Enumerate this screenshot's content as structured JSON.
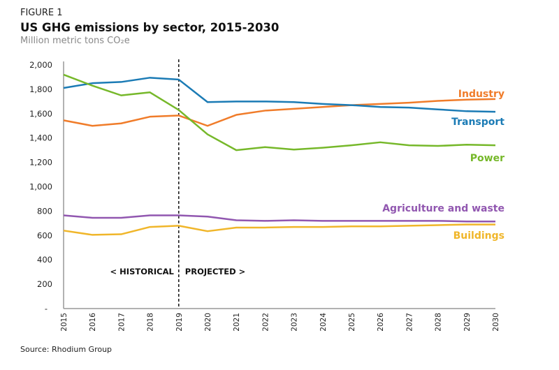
{
  "figure_label": "FIGURE 1",
  "source": "Source: Rhodium Group",
  "chart_data": {
    "type": "line",
    "title": "US GHG emissions by sector, 2015-2030",
    "subtitle": "Million metric tons CO₂e",
    "x": [
      2015,
      2016,
      2017,
      2018,
      2019,
      2020,
      2021,
      2022,
      2023,
      2024,
      2025,
      2026,
      2027,
      2028,
      2029,
      2030
    ],
    "ylim": [
      0,
      2000
    ],
    "yticks": [
      "-",
      "200",
      "400",
      "600",
      "800",
      "1,000",
      "1,200",
      "1,400",
      "1,600",
      "1,800",
      "2,000"
    ],
    "grid": false,
    "divider": {
      "x": 2019,
      "left_label": "< HISTORICAL",
      "right_label": "PROJECTED >"
    },
    "series": [
      {
        "name": "Industry",
        "color": "#f07c2a",
        "values": [
          1545,
          1500,
          1520,
          1575,
          1585,
          1500,
          1590,
          1625,
          1640,
          1655,
          1670,
          1680,
          1690,
          1705,
          1715,
          1720
        ]
      },
      {
        "name": "Transport",
        "color": "#1b7bb5",
        "values": [
          1811,
          1850,
          1860,
          1895,
          1880,
          1695,
          1700,
          1700,
          1695,
          1680,
          1670,
          1655,
          1650,
          1635,
          1620,
          1615
        ]
      },
      {
        "name": "Power",
        "color": "#76b82a",
        "values": [
          1920,
          1830,
          1750,
          1775,
          1630,
          1430,
          1300,
          1325,
          1305,
          1320,
          1340,
          1365,
          1340,
          1335,
          1345,
          1340
        ]
      },
      {
        "name": "Agriculture and waste",
        "color": "#9157b0",
        "values": [
          765,
          745,
          745,
          765,
          765,
          755,
          725,
          720,
          725,
          720,
          720,
          720,
          720,
          720,
          715,
          715
        ]
      },
      {
        "name": "Buildings",
        "color": "#f0b62a",
        "values": [
          640,
          605,
          610,
          670,
          680,
          635,
          665,
          665,
          670,
          670,
          675,
          675,
          680,
          685,
          690,
          690
        ]
      }
    ]
  }
}
